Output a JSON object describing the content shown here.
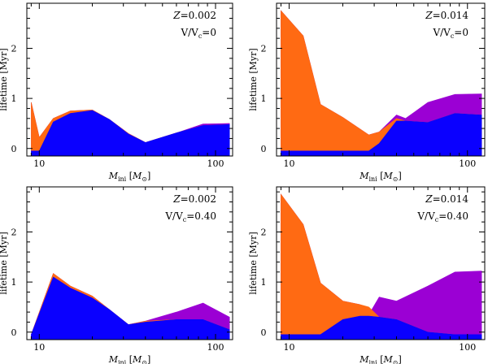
{
  "colors": {
    "orange": "#ff6a13",
    "blue": "#0a00ff",
    "purple": "#9b00d4"
  },
  "chart_data": [
    {
      "type": "area",
      "annotation_z": "Z = 0.002",
      "annotation_v": "V/Vc=0",
      "xlabel": "M_ini [M_sun]",
      "ylabel": "lifetime [Myr]",
      "xscale": "log",
      "xlim": [
        8.5,
        125
      ],
      "ylim": [
        -0.15,
        2.9
      ],
      "xticks": [
        {
          "v": 10,
          "label": "10"
        },
        {
          "v": 100,
          "label": "100"
        }
      ],
      "yticks": [
        {
          "v": 0,
          "label": "0"
        },
        {
          "v": 1,
          "label": "1"
        },
        {
          "v": 2,
          "label": "2"
        }
      ],
      "series": [
        {
          "name": "purple",
          "x": [
            9,
            10,
            12,
            15,
            20,
            25,
            32,
            40,
            60,
            85,
            120
          ],
          "y": [
            0.92,
            0.22,
            0.6,
            0.75,
            0.77,
            0.58,
            0.3,
            0.12,
            0.31,
            0.49,
            0.5
          ]
        },
        {
          "name": "orange",
          "x": [
            9,
            10,
            12,
            15,
            20,
            25,
            32,
            40,
            60,
            85,
            120
          ],
          "y": [
            0.92,
            0.22,
            0.6,
            0.75,
            0.77,
            0.58,
            0.3,
            0.12,
            0.31,
            0.46,
            0.48
          ]
        },
        {
          "name": "blue",
          "x": [
            9,
            10,
            12,
            15,
            20,
            25,
            32,
            40,
            60,
            85,
            120
          ],
          "y": [
            -0.05,
            -0.05,
            0.53,
            0.7,
            0.76,
            0.58,
            0.29,
            0.12,
            0.31,
            0.46,
            0.48
          ]
        }
      ]
    },
    {
      "type": "area",
      "annotation_z": "Z = 0.014",
      "annotation_v": "V/Vc=0",
      "xlabel": "M_ini [M_sun]",
      "ylabel": "lifetime [Myr]",
      "xscale": "log",
      "xlim": [
        8.5,
        125
      ],
      "ylim": [
        -0.15,
        2.9
      ],
      "xticks": [
        {
          "v": 10,
          "label": "10"
        },
        {
          "v": 100,
          "label": "100"
        }
      ],
      "yticks": [
        {
          "v": 0,
          "label": "0"
        },
        {
          "v": 1,
          "label": "1"
        },
        {
          "v": 2,
          "label": "2"
        }
      ],
      "series": [
        {
          "name": "purple",
          "x": [
            9,
            12,
            15,
            20,
            28,
            32,
            40,
            45,
            60,
            85,
            120
          ],
          "y": [
            2.75,
            2.25,
            0.88,
            0.62,
            0.27,
            0.33,
            0.67,
            0.6,
            0.92,
            1.08,
            1.09
          ]
        },
        {
          "name": "orange",
          "x": [
            9,
            12,
            15,
            20,
            28,
            32,
            40,
            45,
            60,
            85,
            120
          ],
          "y": [
            2.75,
            2.25,
            0.88,
            0.62,
            0.27,
            0.33,
            0.6,
            0.55,
            0.52,
            0.7,
            0.67
          ]
        },
        {
          "name": "blue",
          "x": [
            9,
            12,
            15,
            20,
            28,
            32,
            40,
            45,
            60,
            85,
            120
          ],
          "y": [
            -0.05,
            -0.05,
            -0.05,
            -0.05,
            -0.05,
            0.1,
            0.55,
            0.55,
            0.52,
            0.7,
            0.67
          ]
        }
      ]
    },
    {
      "type": "area",
      "annotation_z": "Z = 0.002",
      "annotation_v": "V/Vc=0.40",
      "xlabel": "M_ini [M_sun]",
      "ylabel": "lifetime [Myr]",
      "xscale": "log",
      "xlim": [
        8.5,
        125
      ],
      "ylim": [
        -0.15,
        2.9
      ],
      "xticks": [
        {
          "v": 10,
          "label": "10"
        },
        {
          "v": 100,
          "label": "100"
        }
      ],
      "yticks": [
        {
          "v": 0,
          "label": "0"
        },
        {
          "v": 1,
          "label": "1"
        },
        {
          "v": 2,
          "label": "2"
        }
      ],
      "series": [
        {
          "name": "purple",
          "x": [
            9,
            12,
            15,
            20,
            25,
            32,
            40,
            60,
            85,
            120
          ],
          "y": [
            -0.05,
            1.17,
            0.92,
            0.72,
            0.45,
            0.15,
            0.22,
            0.4,
            0.58,
            0.3
          ]
        },
        {
          "name": "orange",
          "x": [
            9,
            12,
            15,
            20,
            25,
            32,
            40,
            60,
            85,
            120
          ],
          "y": [
            -0.05,
            1.17,
            0.92,
            0.72,
            0.45,
            0.15,
            0.22,
            0.25,
            0.25,
            0.05
          ]
        },
        {
          "name": "blue",
          "x": [
            9,
            12,
            15,
            20,
            25,
            32,
            40,
            60,
            85,
            120
          ],
          "y": [
            -0.05,
            1.1,
            0.88,
            0.68,
            0.45,
            0.15,
            0.2,
            0.25,
            0.25,
            0.05
          ]
        }
      ]
    },
    {
      "type": "area",
      "annotation_z": "Z = 0.014",
      "annotation_v": "V/Vc=0.40",
      "xlabel": "M_ini [M_sun]",
      "ylabel": "lifetime [Myr]",
      "xscale": "log",
      "xlim": [
        8.5,
        125
      ],
      "ylim": [
        -0.15,
        2.9
      ],
      "xticks": [
        {
          "v": 10,
          "label": "10"
        },
        {
          "v": 100,
          "label": "100"
        }
      ],
      "yticks": [
        {
          "v": 0,
          "label": "0"
        },
        {
          "v": 1,
          "label": "1"
        },
        {
          "v": 2,
          "label": "2"
        }
      ],
      "series": [
        {
          "name": "purple",
          "x": [
            9,
            12,
            15,
            20,
            25,
            28,
            32,
            40,
            60,
            85,
            120
          ],
          "y": [
            2.75,
            2.15,
            0.98,
            0.62,
            0.55,
            0.35,
            0.7,
            0.62,
            0.92,
            1.2,
            1.22
          ]
        },
        {
          "name": "orange",
          "x": [
            9,
            12,
            15,
            20,
            25,
            28,
            32,
            40,
            60,
            85,
            120
          ],
          "y": [
            2.75,
            2.15,
            0.98,
            0.62,
            0.55,
            0.5,
            0.3,
            0.25,
            0.0,
            -0.05,
            -0.05
          ]
        },
        {
          "name": "blue",
          "x": [
            9,
            12,
            15,
            20,
            25,
            28,
            32,
            40,
            60,
            85,
            120
          ],
          "y": [
            -0.05,
            -0.05,
            -0.05,
            0.25,
            0.32,
            0.32,
            0.3,
            0.25,
            0.0,
            -0.05,
            -0.05
          ]
        }
      ]
    }
  ]
}
